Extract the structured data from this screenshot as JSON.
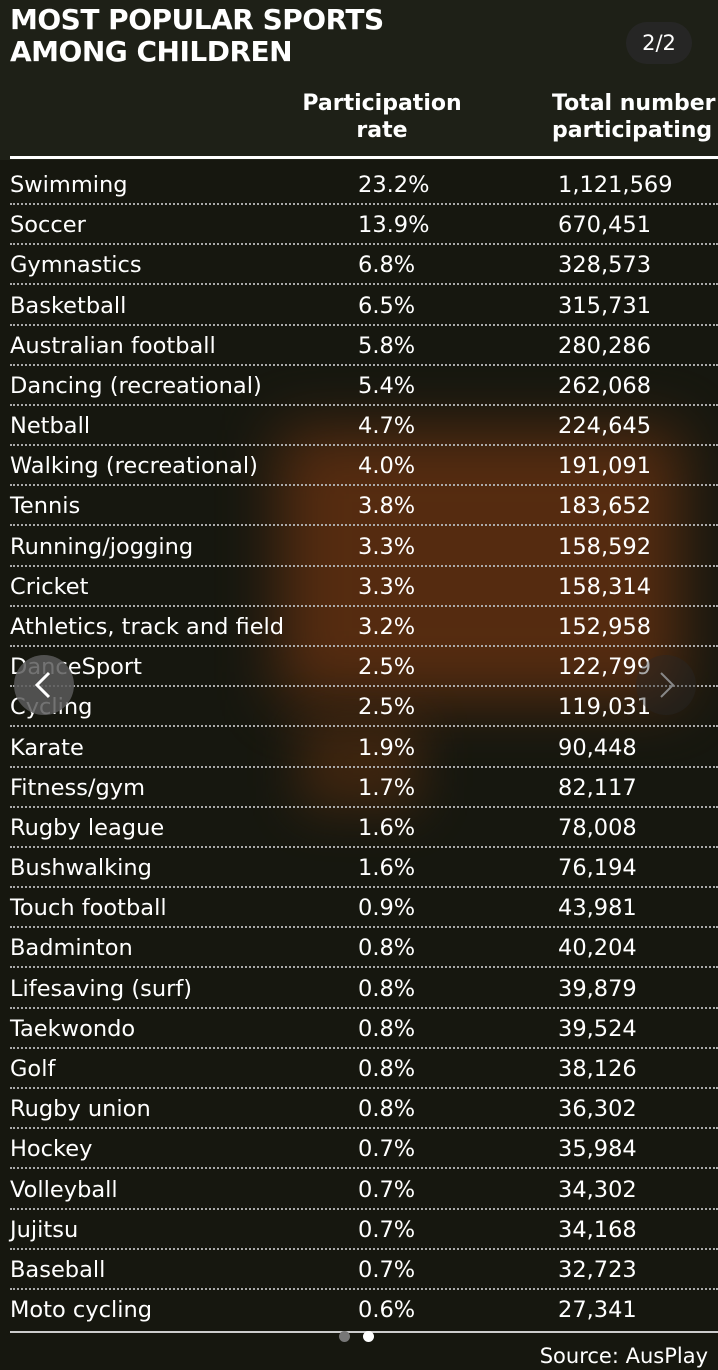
{
  "header": {
    "title_lines": [
      "MOST POPULAR SPORTS",
      "AMONG CHILDREN"
    ],
    "counter": "2/2"
  },
  "table": {
    "columns": [
      [
        "Participation",
        "rate"
      ],
      [
        "Total number",
        "participating"
      ]
    ],
    "rows": [
      [
        "Swimming",
        "23.2%",
        "1,121,569"
      ],
      [
        "Soccer",
        "13.9%",
        "670,451"
      ],
      [
        "Gymnastics",
        "6.8%",
        "328,573"
      ],
      [
        "Basketball",
        "6.5%",
        "315,731"
      ],
      [
        "Australian football",
        "5.8%",
        "280,286"
      ],
      [
        "Dancing (recreational)",
        "5.4%",
        "262,068"
      ],
      [
        "Netball",
        "4.7%",
        "224,645"
      ],
      [
        "Walking (recreational)",
        "4.0%",
        "191,091"
      ],
      [
        "Tennis",
        "3.8%",
        "183,652"
      ],
      [
        "Running/jogging",
        "3.3%",
        "158,592"
      ],
      [
        "Cricket",
        "3.3%",
        "158,314"
      ],
      [
        "Athletics, track and field",
        "3.2%",
        "152,958"
      ],
      [
        "DanceSport",
        "2.5%",
        "122,799"
      ],
      [
        "Cycling",
        "2.5%",
        "119,031"
      ],
      [
        "Karate",
        "1.9%",
        "90,448"
      ],
      [
        "Fitness/gym",
        "1.7%",
        "82,117"
      ],
      [
        "Rugby league",
        "1.6%",
        "78,008"
      ],
      [
        "Bushwalking",
        "1.6%",
        "76,194"
      ],
      [
        "Touch football",
        "0.9%",
        "43,981"
      ],
      [
        "Badminton",
        "0.8%",
        "40,204"
      ],
      [
        "Lifesaving (surf)",
        "0.8%",
        "39,879"
      ],
      [
        "Taekwondo",
        "0.8%",
        "39,524"
      ],
      [
        "Golf",
        "0.8%",
        "38,126"
      ],
      [
        "Rugby union",
        "0.8%",
        "36,302"
      ],
      [
        "Hockey",
        "0.7%",
        "35,984"
      ],
      [
        "Volleyball",
        "0.7%",
        "34,302"
      ],
      [
        "Jujitsu",
        "0.7%",
        "34,168"
      ],
      [
        "Baseball",
        "0.7%",
        "32,723"
      ],
      [
        "Moto cycling",
        "0.6%",
        "27,341"
      ]
    ]
  },
  "source": "Source: AusPlay"
}
